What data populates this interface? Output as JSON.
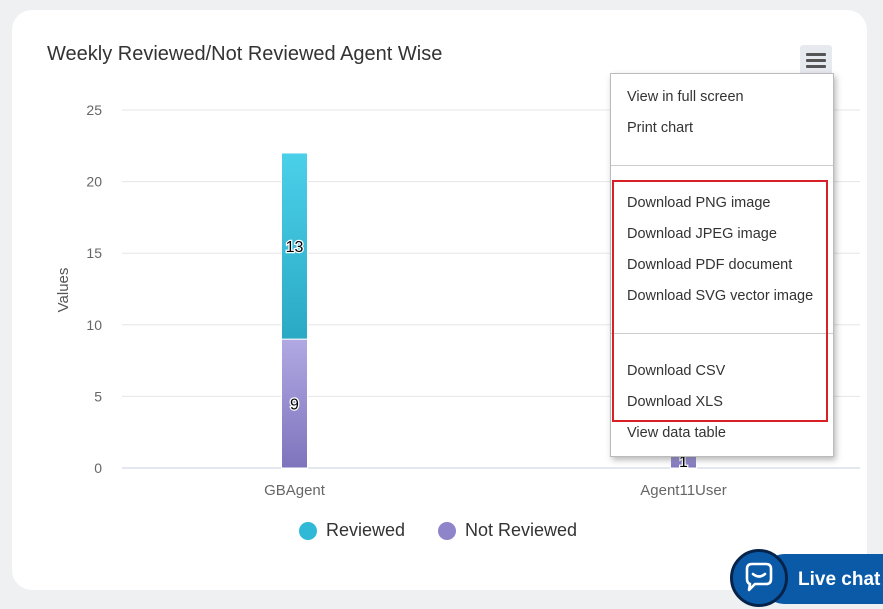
{
  "chart": {
    "title": "Weekly Reviewed/Not Reviewed Agent Wise",
    "menu_icon": "hamburger-icon"
  },
  "chart_data": {
    "type": "bar",
    "stacked": true,
    "categories": [
      "GBAgent",
      "Agent11User"
    ],
    "series": [
      {
        "name": "Not Reviewed",
        "values": [
          9,
          1
        ],
        "color": "#8d84c9"
      },
      {
        "name": "Reviewed",
        "values": [
          13,
          0
        ],
        "color": "#2fb9d6"
      }
    ],
    "data_labels": [
      {
        "category": "GBAgent",
        "series": "Reviewed",
        "text": "13"
      },
      {
        "category": "GBAgent",
        "series": "Not Reviewed",
        "text": "9"
      },
      {
        "category": "Agent11User",
        "series": "Not Reviewed",
        "text": "1"
      }
    ],
    "ylabel": "Values",
    "xlabel": "",
    "ylim": [
      0,
      25
    ],
    "yticks": [
      "0",
      "5",
      "10",
      "15",
      "20",
      "25"
    ],
    "grid": true,
    "legend_position": "bottom-center"
  },
  "legend": {
    "items": [
      {
        "label": "Reviewed",
        "color": "#2fb9d6"
      },
      {
        "label": "Not Reviewed",
        "color": "#8d84c9"
      }
    ]
  },
  "export_menu": {
    "items": [
      "View in full screen",
      "Print chart",
      "Download PNG image",
      "Download JPEG image",
      "Download PDF document",
      "Download SVG vector image",
      "Download CSV",
      "Download XLS",
      "View data table"
    ],
    "highlight_color": "#d92027"
  },
  "live_chat": {
    "label": "Live chat",
    "icon": "chat-bubble-icon",
    "color": "#0a5aa8"
  }
}
